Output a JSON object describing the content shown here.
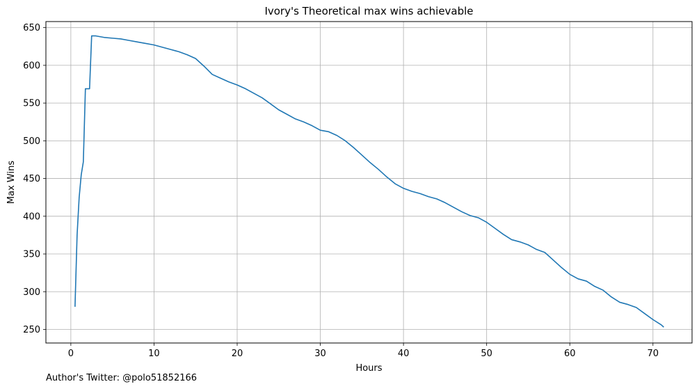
{
  "chart_data": {
    "type": "line",
    "title": "Ivory's Theoretical max wins achievable",
    "xlabel": "Hours",
    "ylabel": "Max Wins",
    "xlim": [
      -3.0,
      74.7
    ],
    "ylim": [
      232.0,
      658.0
    ],
    "xticks": [
      0,
      10,
      20,
      30,
      40,
      50,
      60,
      70
    ],
    "yticks": [
      250,
      300,
      350,
      400,
      450,
      500,
      550,
      600,
      650
    ],
    "grid": true,
    "legend": "none",
    "series": [
      {
        "color": "#1f77b4",
        "x": [
          0.5,
          0.75,
          1.0,
          1.25,
          1.5,
          1.75,
          2.0,
          2.25,
          2.5,
          3.0,
          4.0,
          5.0,
          6.0,
          7.0,
          8.0,
          9.0,
          10.0,
          11.0,
          12.0,
          13.0,
          14.0,
          15.0,
          16.0,
          17.0,
          18.0,
          19.0,
          20.0,
          21.0,
          22.0,
          23.0,
          24.0,
          25.0,
          26.0,
          27.0,
          28.0,
          29.0,
          30.0,
          31.0,
          32.0,
          33.0,
          34.0,
          35.0,
          36.0,
          37.0,
          38.0,
          39.0,
          40.0,
          41.0,
          42.0,
          43.0,
          44.0,
          45.0,
          46.0,
          47.0,
          48.0,
          49.0,
          50.0,
          51.0,
          52.0,
          53.0,
          54.0,
          55.0,
          56.0,
          57.0,
          58.0,
          59.0,
          60.0,
          61.0,
          62.0,
          63.0,
          64.0,
          65.0,
          66.0,
          67.0,
          68.0,
          69.0,
          70.0,
          71.0,
          71.3
        ],
        "y": [
          280,
          375,
          425,
          455,
          472,
          569,
          569,
          569,
          639,
          639,
          637,
          636,
          635,
          633,
          631,
          629,
          627,
          624,
          621,
          618,
          614,
          609,
          599,
          588,
          583,
          578,
          574,
          569,
          563,
          557,
          549,
          541,
          535,
          529,
          525,
          520,
          514,
          512,
          507,
          500,
          491,
          481,
          471,
          462,
          452,
          443,
          437,
          433,
          430,
          426,
          423,
          418,
          412,
          406,
          401,
          398,
          392,
          384,
          376,
          369,
          366,
          362,
          356,
          352,
          342,
          332,
          323,
          317,
          314,
          307,
          302,
          293,
          286,
          283,
          279,
          271,
          263,
          256,
          253
        ]
      }
    ]
  },
  "footnote": "Author's Twitter: @polo51852166"
}
